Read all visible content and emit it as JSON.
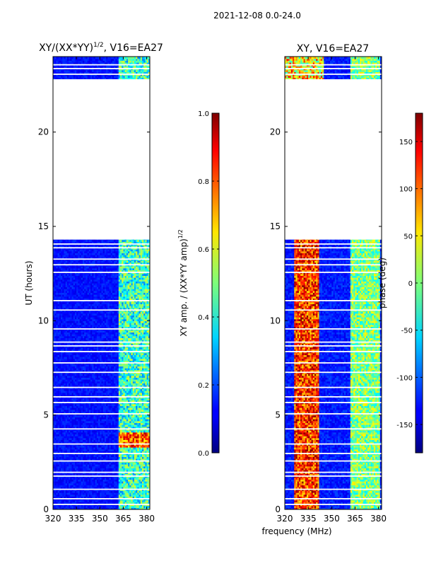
{
  "suptitle": "2021-12-08 0.0-24.0",
  "chart_data": [
    {
      "type": "heatmap",
      "title_main": "XY/(XX*YY)",
      "title_sup": "1/2",
      "title_tail": ", V16=EA27",
      "xlabel": "",
      "ylabel": "UT (hours)",
      "xlim": [
        320,
        382
      ],
      "ylim": [
        0,
        24
      ],
      "xticks": [
        320,
        335,
        350,
        365,
        380
      ],
      "yticks": [
        0,
        5,
        10,
        15,
        20
      ],
      "colorbar": {
        "label": "XY amp. / (XX*YY amp)",
        "label_sup": "1/2",
        "range": [
          0.0,
          1.0
        ],
        "ticks": [
          "0.0",
          "0.2",
          "0.4",
          "0.6",
          "0.8",
          "1.0"
        ],
        "tick_values": [
          0.0,
          0.2,
          0.4,
          0.6,
          0.8,
          1.0
        ]
      },
      "data_gaps_hours": [
        [
          14.3,
          22.8
        ]
      ],
      "data_present_hours": [
        [
          0,
          14.3
        ],
        [
          22.8,
          24
        ]
      ],
      "description_values": "mostly 0.1-0.2 (blue); elevated 0.3-0.6 in 362-382 MHz channels; peak ~0.7-0.9 near 3.3-4.1 h"
    },
    {
      "type": "heatmap",
      "title_main": "XY, V16=EA27",
      "xlabel": "frequency (MHz)",
      "ylabel": "",
      "xlim": [
        320,
        382
      ],
      "ylim": [
        0,
        24
      ],
      "xticks": [
        320,
        335,
        350,
        365,
        380
      ],
      "yticks": [
        0,
        5,
        10,
        15,
        20
      ],
      "colorbar": {
        "label": "phase (deg)",
        "range": [
          -180,
          180
        ],
        "ticks": [
          "-150",
          "-100",
          "-50",
          "0",
          "50",
          "100",
          "150"
        ],
        "tick_values": [
          -150,
          -100,
          -50,
          0,
          50,
          100,
          150
        ]
      },
      "data_gaps_hours": [
        [
          14.3,
          22.8
        ]
      ],
      "data_present_hours": [
        [
          0,
          14.3
        ],
        [
          22.8,
          24
        ]
      ],
      "description_values": "phase ~ -150 (blue) at low freq, ~ +150 (red) around 330-340 MHz, ~ -30 to +30 around 362-380 MHz"
    }
  ]
}
